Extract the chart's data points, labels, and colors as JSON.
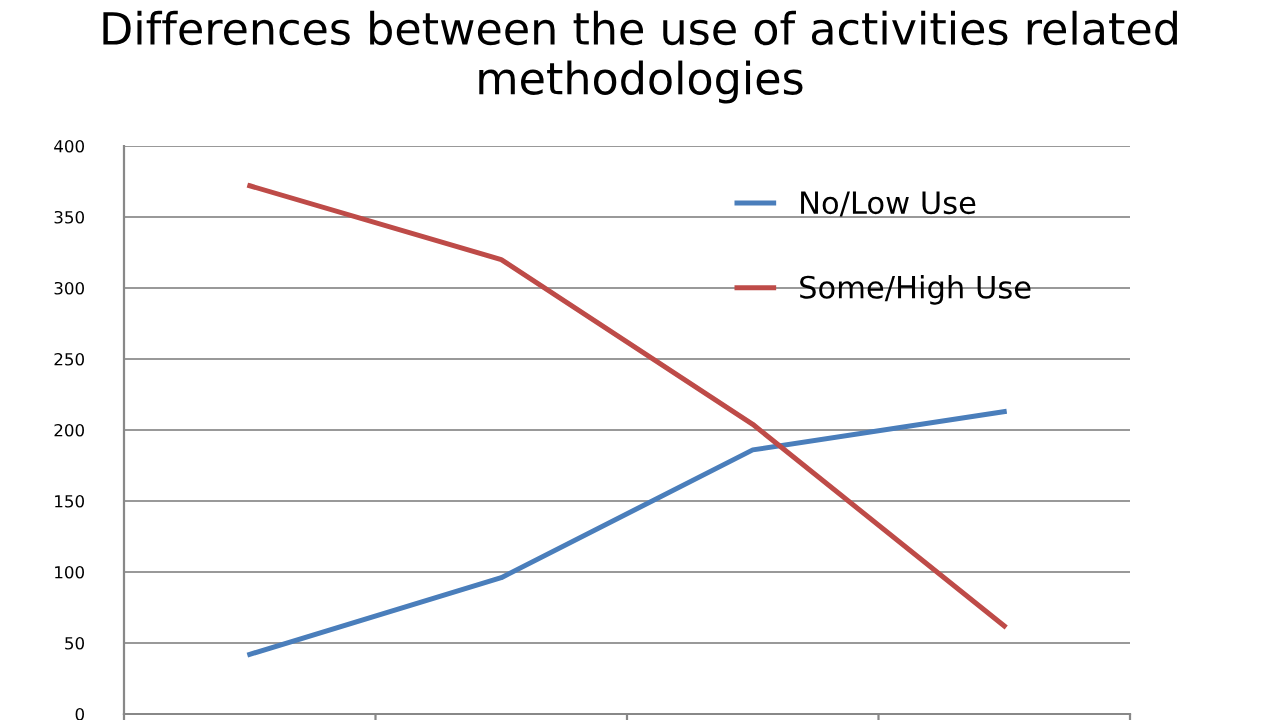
{
  "chart_data": {
    "type": "line",
    "title": "Differences between the use of activities related methodologies",
    "categories": [
      null,
      null,
      null,
      null
    ],
    "series": [
      {
        "name": "No/Low Use",
        "color": "#4a7ebb",
        "values": [
          42,
          96,
          186,
          213
        ]
      },
      {
        "name": "Some/High Use",
        "color": "#be4b48",
        "values": [
          372,
          320,
          204,
          62
        ]
      }
    ],
    "ylim": [
      0,
      400
    ],
    "yticks": [
      0,
      50,
      100,
      150,
      200,
      250,
      300,
      350,
      400
    ],
    "grid": "y",
    "legend": "top right",
    "marker": "none",
    "line_style": "solid"
  }
}
